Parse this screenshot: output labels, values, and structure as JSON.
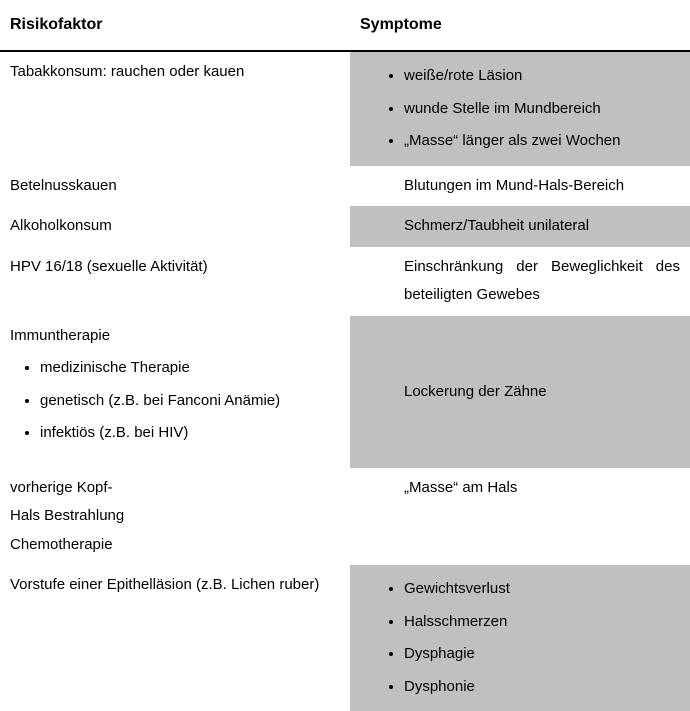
{
  "table": {
    "header": {
      "left": "Risikofaktor",
      "right": "Symptome"
    },
    "rows": [
      {
        "left": {
          "text": "Tabakkonsum: rauchen oder kauen"
        },
        "right": {
          "shaded": true,
          "bullets": [
            "weiße/rote Läsion",
            "wunde Stelle im Mundbereich",
            "„Masse“ länger als zwei Wochen"
          ]
        }
      },
      {
        "left": {
          "text": "Betelnusskauen"
        },
        "right": {
          "shaded": false,
          "plain": "Blutungen im Mund-Hals-Bereich"
        }
      },
      {
        "left": {
          "text": "Alkoholkonsum"
        },
        "right": {
          "shaded": true,
          "plain": "Schmerz/Taubheit unilateral"
        }
      },
      {
        "left": {
          "text": "HPV 16/18 (sexuelle Aktivität)"
        },
        "right": {
          "shaded": false,
          "plain": "Einschränkung der Beweglichkeit des beteiligten Gewebes"
        }
      },
      {
        "left": {
          "text": "Immuntherapie",
          "sub": [
            "medizinische Therapie",
            "genetisch (z.B. bei Fanconi Anämie)",
            "infektiös (z.B. bei HIV)"
          ]
        },
        "right": {
          "shaded": true,
          "plain_centered": "Lockerung der Zähne"
        }
      },
      {
        "left": {
          "lines": [
            "vorherige Kopf-",
            "Hals Bestrahlung",
            "Chemotherapie"
          ]
        },
        "right": {
          "shaded": false,
          "plain": "„Masse“ am Hals"
        }
      },
      {
        "left": {
          "text": "Vorstufe einer Epithelläsion (z.B. Lichen ruber)"
        },
        "right": {
          "shaded": true,
          "bullets": [
            "Gewichtsverlust",
            "Halsschmerzen",
            "Dysphagie",
            "Dysphonie"
          ]
        }
      }
    ],
    "colors": {
      "text": "#000000",
      "background": "#ffffff",
      "shade": "#c0c0c0",
      "rule": "#000000"
    },
    "fontsize_header": 16,
    "fontsize_body": 15
  }
}
